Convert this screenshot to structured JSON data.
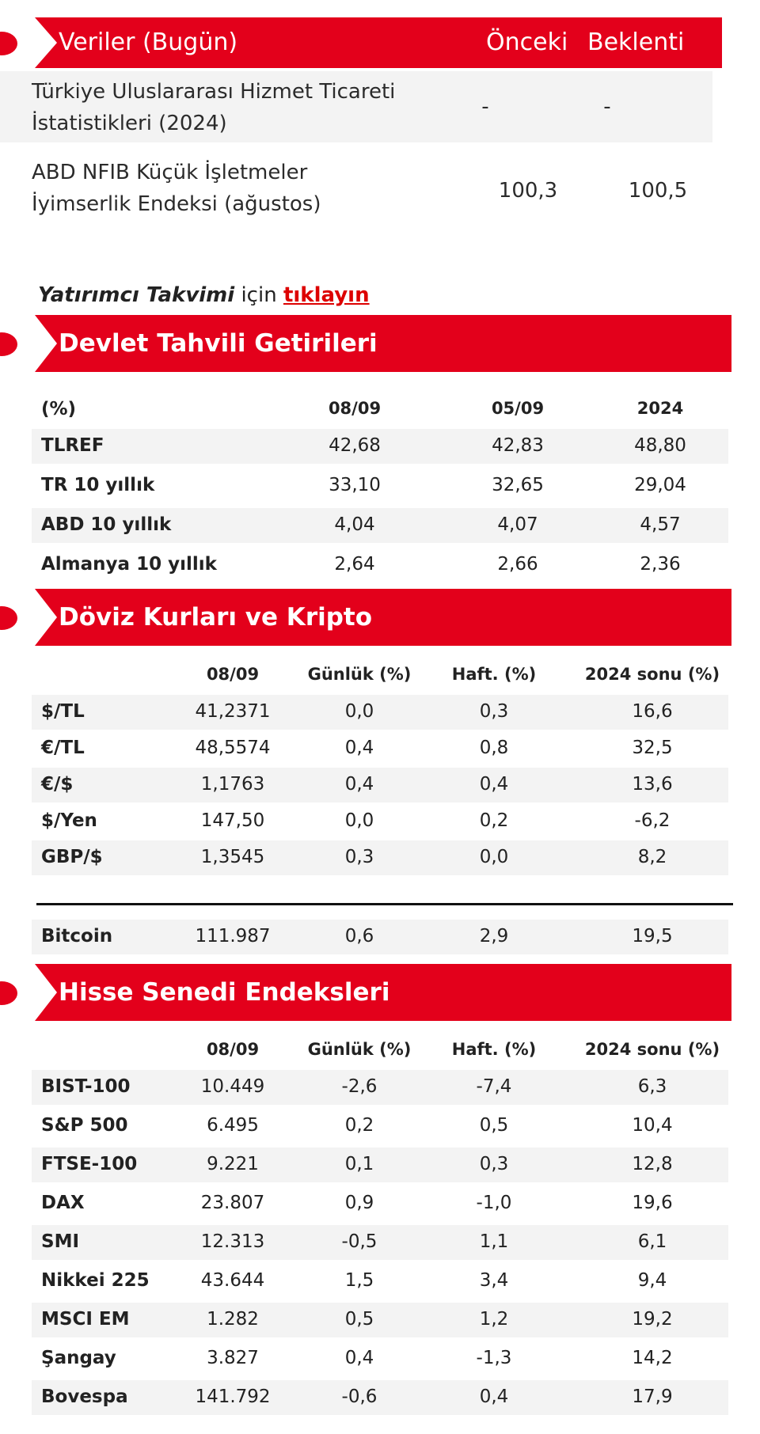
{
  "today": {
    "title": "Veriler (Bugün)",
    "col_prev": "Önceki",
    "col_exp": "Beklenti",
    "rows": [
      {
        "line1": "Türkiye Uluslararası Hizmet Ticareti",
        "line2": "İstatistikleri (2024)",
        "prev": "-",
        "exp": "-"
      },
      {
        "line1": "ABD NFIB Küçük İşletmeler",
        "line2": "İyimserlik Endeksi (ağustos)",
        "prev": "100,3",
        "exp": "100,5"
      }
    ]
  },
  "note": {
    "bold": "Yatırımcı Takvimi",
    "mid": " için ",
    "link": "tıklayın"
  },
  "bonds": {
    "title": "Devlet Tahvili Getirileri",
    "headers": [
      "(%)",
      "08/09",
      "05/09",
      "2024"
    ],
    "rows": [
      [
        "TLREF",
        "42,68",
        "42,83",
        "48,80"
      ],
      [
        "TR 10 yıllık",
        "33,10",
        "32,65",
        "29,04"
      ],
      [
        "ABD 10 yıllık",
        "4,04",
        "4,07",
        "4,57"
      ],
      [
        "Almanya 10 yıllık",
        "2,64",
        "2,66",
        "2,36"
      ]
    ]
  },
  "fx": {
    "title": "Döviz Kurları ve Kripto",
    "headers": [
      "",
      "08/09",
      "Günlük (%)",
      "Haft. (%)",
      "2024 sonu (%)"
    ],
    "rows": [
      [
        "$/TL",
        "41,2371",
        "0,0",
        "0,3",
        "16,6"
      ],
      [
        "€/TL",
        "48,5574",
        "0,4",
        "0,8",
        "32,5"
      ],
      [
        "€/$",
        "1,1763",
        "0,4",
        "0,4",
        "13,6"
      ],
      [
        "$/Yen",
        "147,50",
        "0,0",
        "0,2",
        "-6,2"
      ],
      [
        "GBP/$",
        "1,3545",
        "0,3",
        "0,0",
        "8,2"
      ]
    ],
    "crypto": [
      "Bitcoin",
      "111.987",
      "0,6",
      "2,9",
      "19,5"
    ]
  },
  "stocks": {
    "title": "Hisse Senedi Endeksleri",
    "headers": [
      "",
      "08/09",
      "Günlük (%)",
      "Haft. (%)",
      "2024 sonu (%)"
    ],
    "rows": [
      [
        "BIST-100",
        "10.449",
        "-2,6",
        "-7,4",
        "6,3"
      ],
      [
        "S&P 500",
        "6.495",
        "0,2",
        "0,5",
        "10,4"
      ],
      [
        "FTSE-100",
        "9.221",
        "0,1",
        "0,3",
        "12,8"
      ],
      [
        "DAX",
        "23.807",
        "0,9",
        "-1,0",
        "19,6"
      ],
      [
        "SMI",
        "12.313",
        "-0,5",
        "1,1",
        "6,1"
      ],
      [
        "Nikkei 225",
        "43.644",
        "1,5",
        "3,4",
        "9,4"
      ],
      [
        "MSCI EM",
        "1.282",
        "0,5",
        "1,2",
        "19,2"
      ],
      [
        "Şangay",
        "3.827",
        "0,4",
        "-1,3",
        "14,2"
      ],
      [
        "Bovespa",
        "141.792",
        "-0,6",
        "0,4",
        "17,9"
      ]
    ]
  },
  "colors": {
    "accent": "#e3001b",
    "shade": "#f3f3f3"
  }
}
